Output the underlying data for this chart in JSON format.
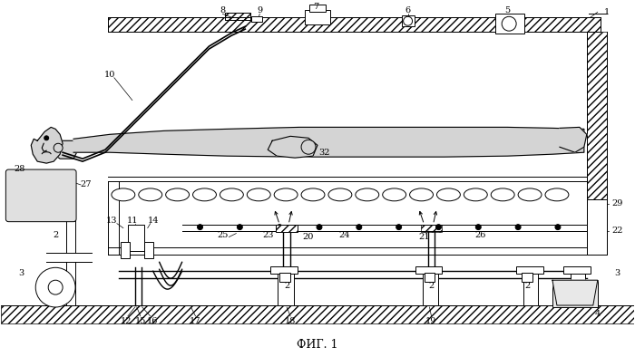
{
  "title": "ФИГ. 1",
  "bg_color": "#ffffff",
  "lc": "#000000",
  "lw": 0.7,
  "figsize": [
    7.0,
    3.94
  ],
  "dpi": 100
}
